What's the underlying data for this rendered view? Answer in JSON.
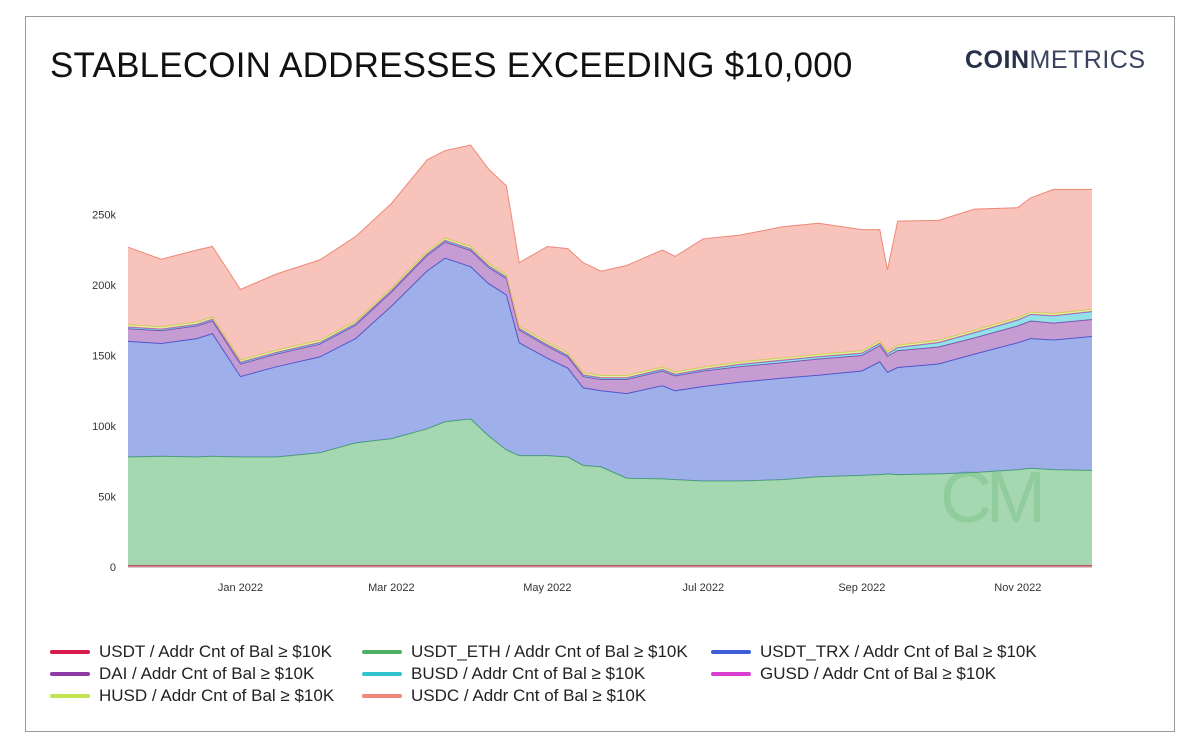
{
  "title": "STABLECOIN ADDRESSES EXCEEDING $10,000",
  "brand": {
    "bold": "COIN",
    "regular": "METRICS"
  },
  "chart_data": {
    "type": "area",
    "stacked": true,
    "x_dates": [
      "2021-11-18",
      "2021-12-01",
      "2021-12-15",
      "2021-12-21",
      "2022-01-01",
      "2022-01-15",
      "2022-02-01",
      "2022-02-15",
      "2022-03-01",
      "2022-03-15",
      "2022-03-22",
      "2022-04-01",
      "2022-04-08",
      "2022-04-15",
      "2022-04-20",
      "2022-05-01",
      "2022-05-09",
      "2022-05-15",
      "2022-05-22",
      "2022-06-01",
      "2022-06-15",
      "2022-06-20",
      "2022-07-01",
      "2022-07-15",
      "2022-08-01",
      "2022-08-15",
      "2022-09-01",
      "2022-09-08",
      "2022-09-11",
      "2022-09-15",
      "2022-10-01",
      "2022-10-15",
      "2022-11-01",
      "2022-11-06",
      "2022-11-15",
      "2022-11-30"
    ],
    "series": [
      {
        "name": "USDT / Addr Cnt of Bal ≥ $10K",
        "color": "#d81b4a",
        "values": [
          1000,
          1000,
          1000,
          1000,
          1000,
          1000,
          1000,
          1000,
          1000,
          1000,
          1000,
          1000,
          1000,
          1000,
          1000,
          1000,
          1000,
          1000,
          1000,
          1000,
          1000,
          1000,
          1000,
          1000,
          1000,
          1000,
          1000,
          1000,
          1000,
          1000,
          1000,
          1000,
          1000,
          1000,
          1000,
          1000
        ]
      },
      {
        "name": "USDT_ETH / Addr Cnt of Bal ≥ $10K",
        "color": "#4caf62",
        "values": [
          77000,
          77500,
          77000,
          77500,
          77000,
          77000,
          80000,
          87000,
          90000,
          97000,
          102000,
          104000,
          92000,
          82000,
          78000,
          78000,
          77000,
          71000,
          70000,
          62000,
          61500,
          61000,
          60000,
          60000,
          61000,
          63000,
          64000,
          64500,
          65000,
          64500,
          65000,
          66000,
          68000,
          69000,
          68000,
          67500
        ]
      },
      {
        "name": "USDT_TRX / Addr Cnt of Bal ≥ $10K",
        "color": "#3f5fd6",
        "values": [
          82000,
          80000,
          84000,
          87000,
          57000,
          64000,
          68000,
          74000,
          94000,
          112000,
          116000,
          108000,
          108000,
          110000,
          80000,
          69000,
          63000,
          55000,
          54000,
          60000,
          66000,
          63000,
          67000,
          70000,
          72000,
          72000,
          74000,
          80000,
          72000,
          76000,
          78000,
          84000,
          90000,
          92000,
          92000,
          95000
        ]
      },
      {
        "name": "DAI / Addr Cnt of Bal ≥ $10K",
        "color": "#8e3ba8",
        "values": [
          9000,
          9000,
          9000,
          9000,
          9000,
          9000,
          9000,
          9500,
          10000,
          11000,
          11500,
          11500,
          11500,
          11500,
          9000,
          8500,
          8000,
          8000,
          8000,
          10000,
          10500,
          10500,
          11000,
          11000,
          11000,
          11500,
          11000,
          11500,
          11500,
          12000,
          12000,
          11500,
          12000,
          12500,
          12000,
          12000
        ]
      },
      {
        "name": "BUSD / Addr Cnt of Bal ≥ $10K",
        "color": "#2ec3cf",
        "values": [
          1000,
          1000,
          1000,
          1000,
          1000,
          1000,
          1000,
          1000,
          1000,
          1000,
          1000,
          1000,
          1000,
          1000,
          1000,
          1000,
          1000,
          1000,
          1000,
          1000,
          1000,
          1000,
          1000,
          1500,
          1500,
          1500,
          1500,
          1500,
          1500,
          2000,
          3000,
          3500,
          4000,
          4500,
          5000,
          5500
        ]
      },
      {
        "name": "GUSD / Addr Cnt of Bal ≥ $10K",
        "color": "#d93ed0",
        "values": [
          300,
          300,
          300,
          300,
          300,
          300,
          300,
          300,
          300,
          300,
          300,
          300,
          300,
          300,
          300,
          300,
          300,
          300,
          300,
          300,
          300,
          300,
          300,
          300,
          300,
          300,
          300,
          300,
          300,
          300,
          300,
          300,
          300,
          300,
          300,
          300
        ]
      },
      {
        "name": "HUSD / Addr Cnt of Bal ≥ $10K",
        "color": "#c3e551",
        "values": [
          1500,
          1500,
          1500,
          1500,
          1500,
          1500,
          1500,
          1500,
          1500,
          1500,
          1500,
          1500,
          1500,
          1500,
          1500,
          1500,
          1500,
          1500,
          1500,
          1500,
          1500,
          1500,
          1500,
          1500,
          1500,
          1500,
          1500,
          1500,
          1500,
          1500,
          1500,
          1500,
          1500,
          1500,
          1500,
          1500
        ]
      },
      {
        "name": "USDC / Addr Cnt of Bal ≥ $10K",
        "color": "#f08878",
        "values": [
          55000,
          48000,
          51000,
          50000,
          50000,
          54000,
          57000,
          60000,
          60000,
          65000,
          62000,
          72000,
          67000,
          63000,
          45000,
          68000,
          74000,
          78000,
          74000,
          78000,
          83000,
          82000,
          91000,
          90000,
          93000,
          93000,
          86000,
          79000,
          58000,
          88000,
          85000,
          86000,
          78000,
          81000,
          88000,
          85000
        ]
      }
    ],
    "y_ticks": [
      0,
      50000,
      100000,
      150000,
      200000,
      250000
    ],
    "y_tick_labels": [
      "0",
      "50k",
      "100k",
      "150k",
      "200k",
      "250k"
    ],
    "ylim": [
      0,
      300000
    ],
    "x_ticks": [
      "2022-01-01",
      "2022-03-01",
      "2022-05-01",
      "2022-07-01",
      "2022-09-01",
      "2022-11-01"
    ],
    "x_tick_labels": [
      "Jan 2022",
      "Mar 2022",
      "May 2022",
      "Jul 2022",
      "Sep 2022",
      "Nov 2022"
    ],
    "xlim": [
      "2021-11-18",
      "2022-11-30"
    ],
    "legend_position": "bottom",
    "grid": false
  }
}
